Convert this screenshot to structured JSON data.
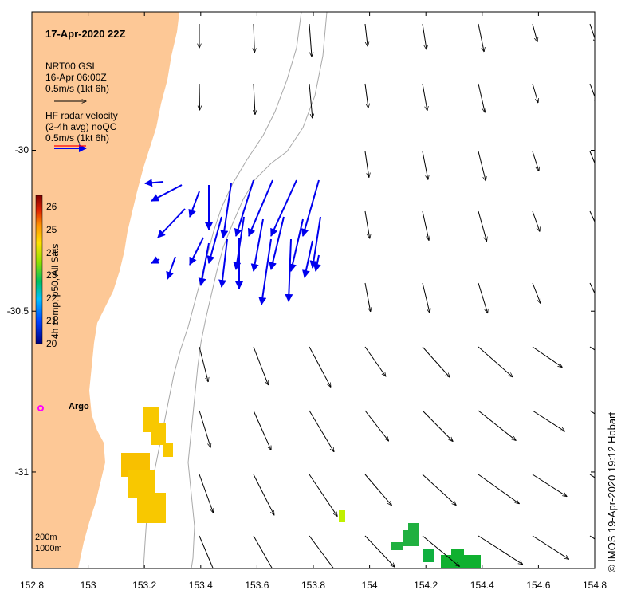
{
  "title": "17-Apr-2020 22Z",
  "legend": {
    "model_line1": "NRT00 GSL",
    "model_line2": "16-Apr 06:00Z",
    "model_scale": "0.5m/s (1kt 6h)",
    "radar_line1": "HF radar velocity",
    "radar_line2": "(2-4h avg) noQC",
    "radar_scale": "0.5m/s (1kt 6h)"
  },
  "colorbar": {
    "label": "4h comp, p50, All Sats",
    "ticks": [
      "26",
      "25",
      "24",
      "23",
      "22",
      "21",
      "20"
    ],
    "range": [
      20,
      26.5
    ]
  },
  "argo_label": "Argo",
  "depth_labels": [
    "200m",
    "1000m"
  ],
  "credit": "© IMOS 19-Apr-2020 19:12 Hobart",
  "x_axis": {
    "ticks": [
      "152.8",
      "153",
      "153.2",
      "153.4",
      "153.6",
      "153.8",
      "154",
      "154.2",
      "154.4",
      "154.6",
      "154.8"
    ],
    "range": [
      152.8,
      154.8
    ]
  },
  "y_axis": {
    "ticks": [
      "-30",
      "-30.5",
      "-31"
    ],
    "range": [
      -31.3,
      -29.57
    ]
  },
  "colors": {
    "land": "#fdc896",
    "model_arrow": "#000000",
    "radar_arrow": "#0000ee",
    "argo": "#ff00ff",
    "isobath": "#a0a0a0"
  },
  "sst_patches": [
    {
      "lon": 153.22,
      "lat": -30.83,
      "value": 25.0
    },
    {
      "lon": 153.18,
      "lat": -31.0,
      "value": 24.8
    },
    {
      "lon": 153.2,
      "lat": -31.08,
      "value": 24.9
    },
    {
      "lon": 153.91,
      "lat": -31.14,
      "value": 24.0
    },
    {
      "lon": 154.15,
      "lat": -31.2,
      "value": 22.8
    },
    {
      "lon": 154.32,
      "lat": -31.27,
      "value": 22.6
    }
  ]
}
